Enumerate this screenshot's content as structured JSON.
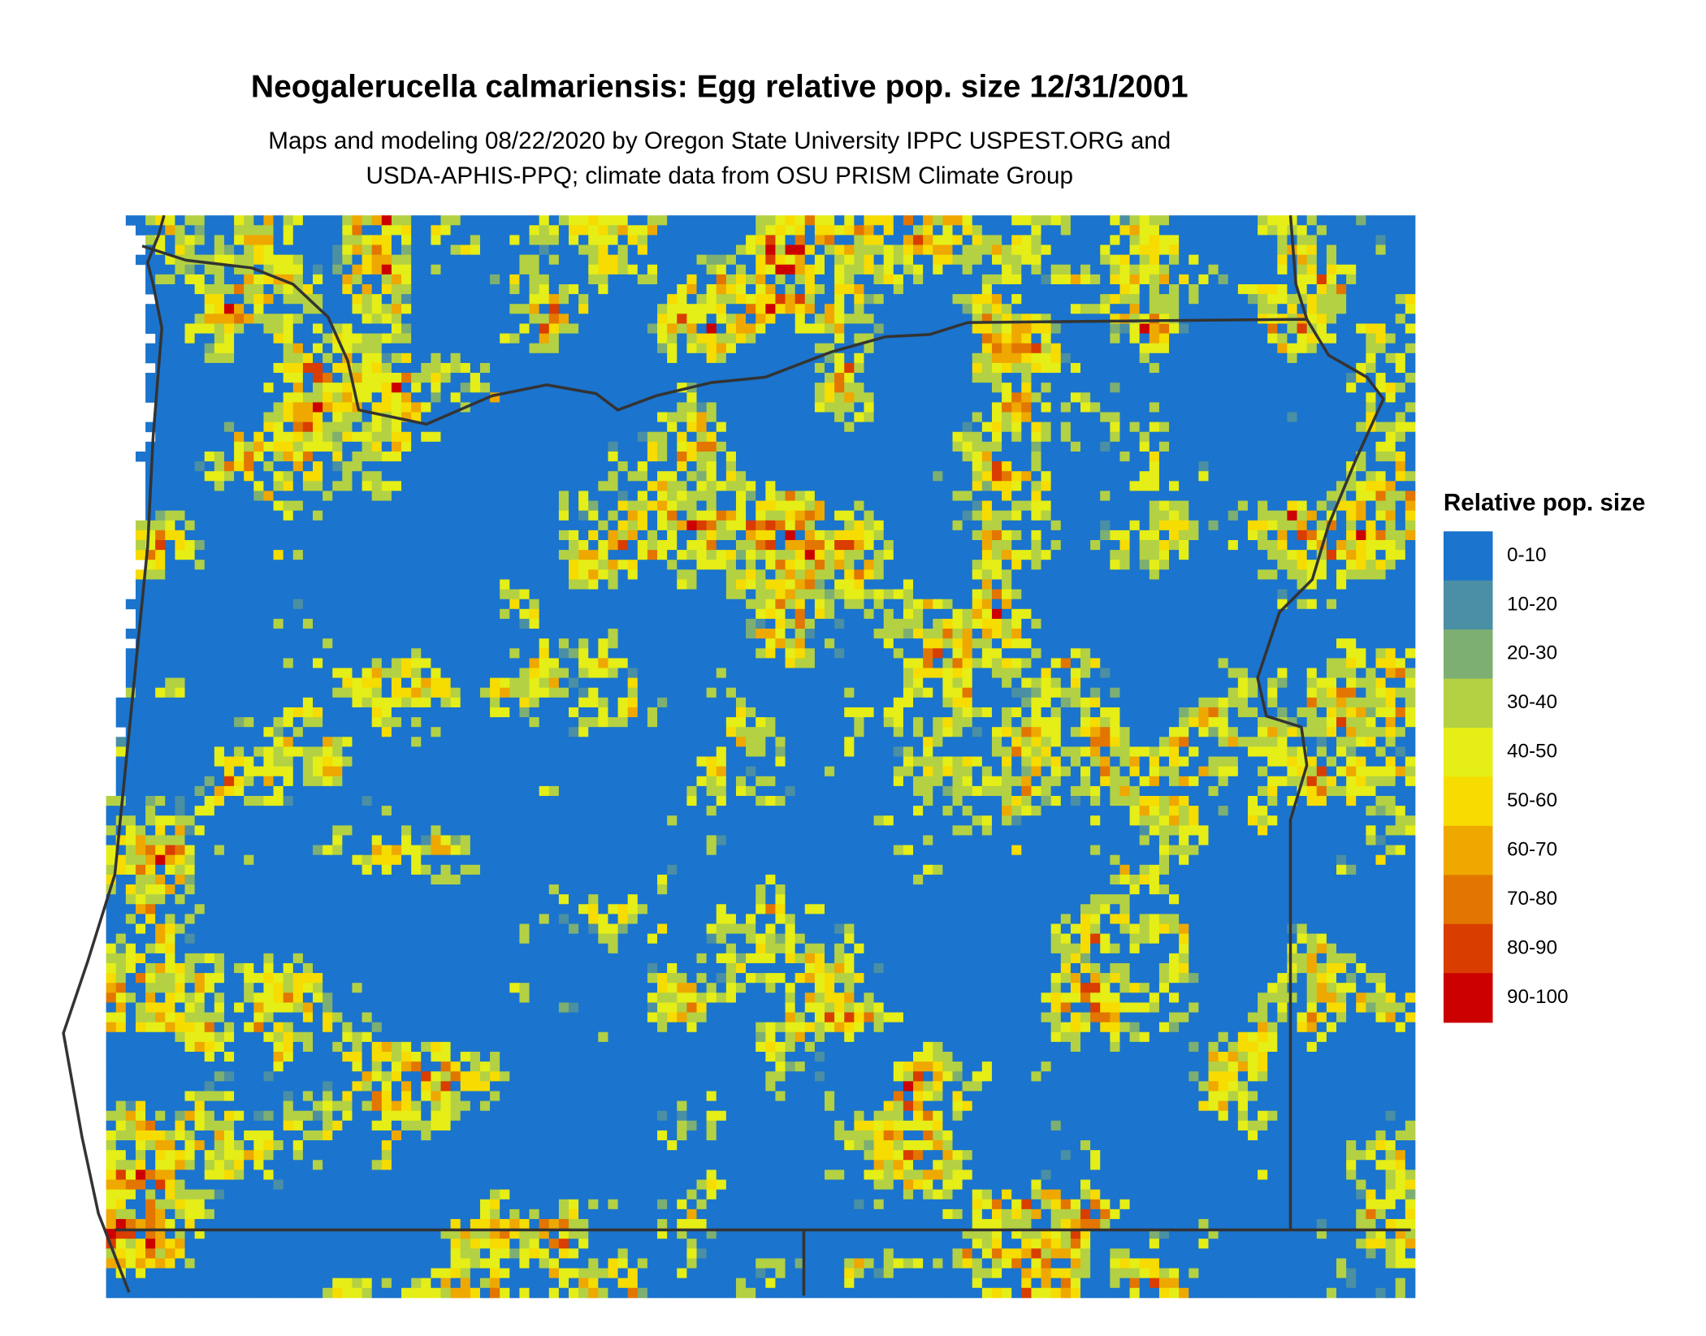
{
  "title": "Neogalerucella calmariensis: Egg relative pop. size 12/31/2001",
  "subtitle": [
    "Maps and modeling 08/22/2020 by Oregon State University IPPC USPEST.ORG and",
    "USDA-APHIS-PPQ; climate data from OSU PRISM Climate Group"
  ],
  "legend": {
    "title": "Relative pop. size",
    "items": [
      {
        "label": "0-10",
        "color": "#1b74cd"
      },
      {
        "label": "10-20",
        "color": "#4a8fa3"
      },
      {
        "label": "20-30",
        "color": "#7daf72"
      },
      {
        "label": "30-40",
        "color": "#b3d143"
      },
      {
        "label": "40-50",
        "color": "#e5ee16"
      },
      {
        "label": "50-60",
        "color": "#f6dc00"
      },
      {
        "label": "60-70",
        "color": "#eea800"
      },
      {
        "label": "70-80",
        "color": "#e27600"
      },
      {
        "label": "80-90",
        "color": "#d93d00"
      },
      {
        "label": "90-100",
        "color": "#cc0000"
      }
    ]
  }
}
